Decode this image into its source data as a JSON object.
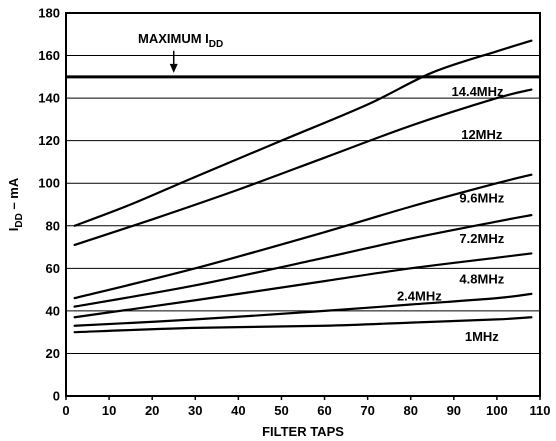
{
  "chart_data": {
    "type": "line",
    "xlabel": "FILTER TAPS",
    "ylabel_main": "I",
    "ylabel_sub": "DD",
    "ylabel_unit": " – mA",
    "xlim": [
      0,
      110
    ],
    "ylim": [
      0,
      180
    ],
    "xticks": [
      0,
      10,
      20,
      30,
      40,
      50,
      60,
      70,
      80,
      90,
      100,
      110
    ],
    "yticks": [
      0,
      20,
      40,
      60,
      80,
      100,
      120,
      140,
      160,
      180
    ],
    "grid": "horizontal",
    "reference_line": {
      "y": 150,
      "label_main": "MAXIMUM I",
      "label_sub": "DD",
      "arrow_x": 25
    },
    "series": [
      {
        "name": "14.4MHz",
        "x": [
          2,
          15,
          30,
          50,
          70,
          85,
          100,
          108
        ],
        "values": [
          80,
          90,
          103,
          120,
          137,
          152,
          162,
          167
        ]
      },
      {
        "name": "12MHz",
        "x": [
          2,
          20,
          40,
          60,
          80,
          100,
          108
        ],
        "values": [
          71,
          83,
          97,
          112,
          127,
          140,
          144
        ]
      },
      {
        "name": "9.6MHz",
        "x": [
          2,
          30,
          60,
          80,
          100,
          108
        ],
        "values": [
          46,
          60,
          77,
          89,
          100,
          104
        ]
      },
      {
        "name": "7.2MHz",
        "x": [
          2,
          30,
          60,
          80,
          100,
          108
        ],
        "values": [
          42,
          52,
          65,
          74,
          82,
          85
        ]
      },
      {
        "name": "4.8MHz",
        "x": [
          2,
          30,
          60,
          80,
          100,
          108
        ],
        "values": [
          37,
          45,
          54,
          60,
          65,
          67
        ]
      },
      {
        "name": "2.4MHz",
        "x": [
          2,
          30,
          60,
          80,
          100,
          108
        ],
        "values": [
          33,
          36,
          40,
          43,
          46,
          48
        ]
      },
      {
        "name": "1MHz",
        "x": [
          2,
          30,
          60,
          80,
          100,
          108
        ],
        "values": [
          30,
          32,
          33,
          34.5,
          36,
          37
        ]
      }
    ],
    "series_label_positions": [
      {
        "x": 95.5,
        "y": 143
      },
      {
        "x": 96.5,
        "y": 123
      },
      {
        "x": 96.5,
        "y": 93
      },
      {
        "x": 96.5,
        "y": 74
      },
      {
        "x": 96.5,
        "y": 55
      },
      {
        "x": 82,
        "y": 47
      },
      {
        "x": 96.5,
        "y": 28
      }
    ]
  }
}
